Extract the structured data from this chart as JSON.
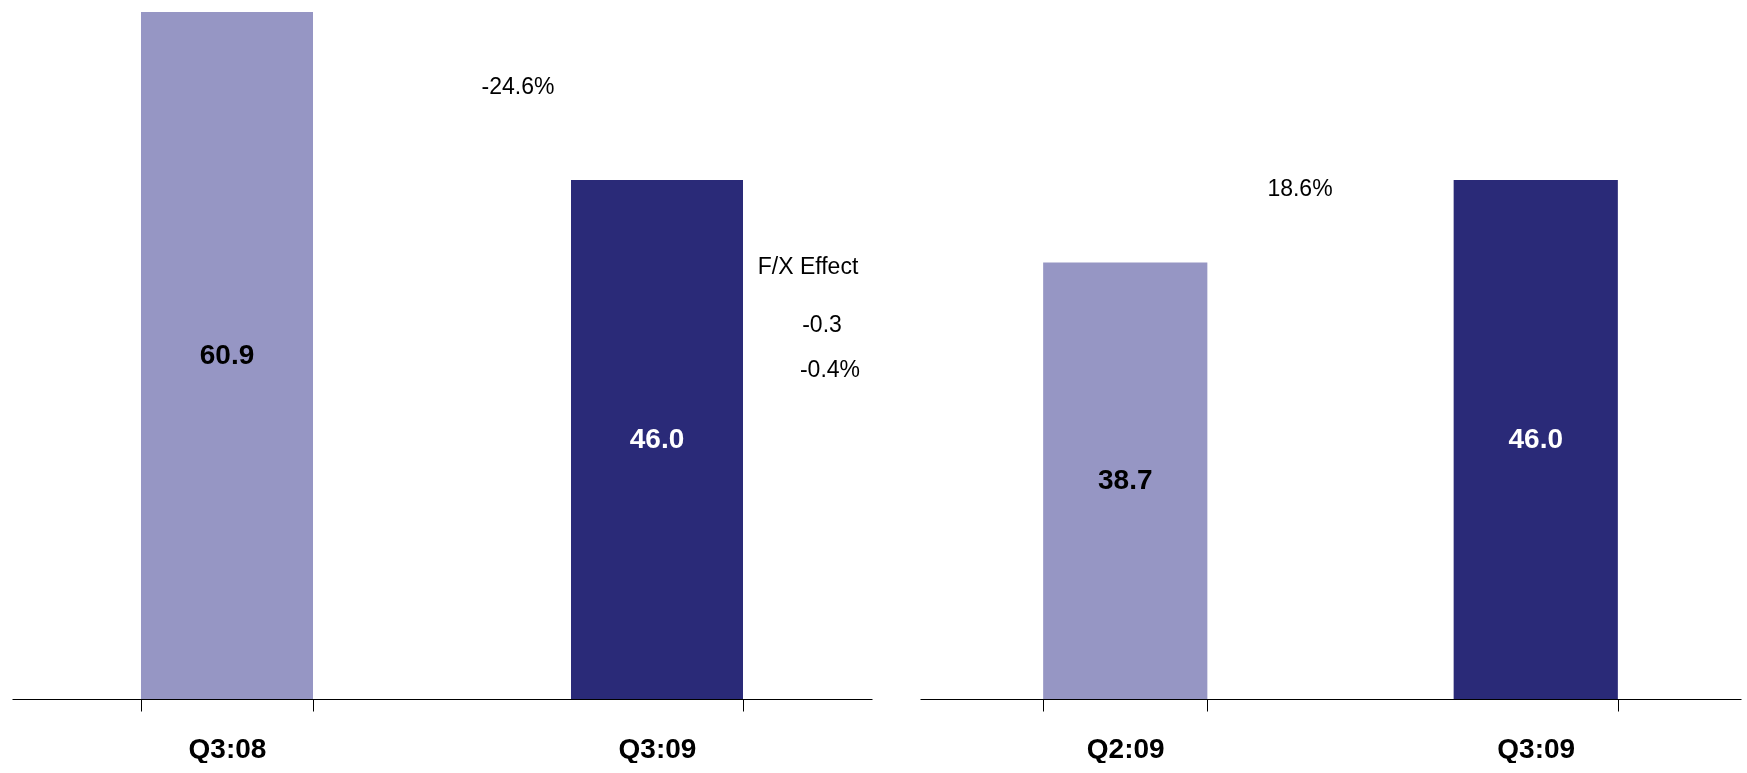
{
  "chart_data": [
    {
      "type": "bar",
      "categories": [
        "Q3:08",
        "Q3:09"
      ],
      "values": [
        60.9,
        46.0
      ],
      "value_labels": [
        "60.9",
        "46.0"
      ],
      "colors": [
        "#9696c4",
        "#2a2a78"
      ],
      "annotations": [
        "-24.6%",
        "F/X Effect",
        "-0.3",
        "-0.4%"
      ]
    },
    {
      "type": "bar",
      "categories": [
        "Q2:09",
        "Q3:09"
      ],
      "values": [
        38.7,
        46.0
      ],
      "value_labels": [
        "38.7",
        "46.0"
      ],
      "colors": [
        "#9696c4",
        "#2a2a78"
      ],
      "annotations": [
        "18.6%"
      ]
    }
  ]
}
